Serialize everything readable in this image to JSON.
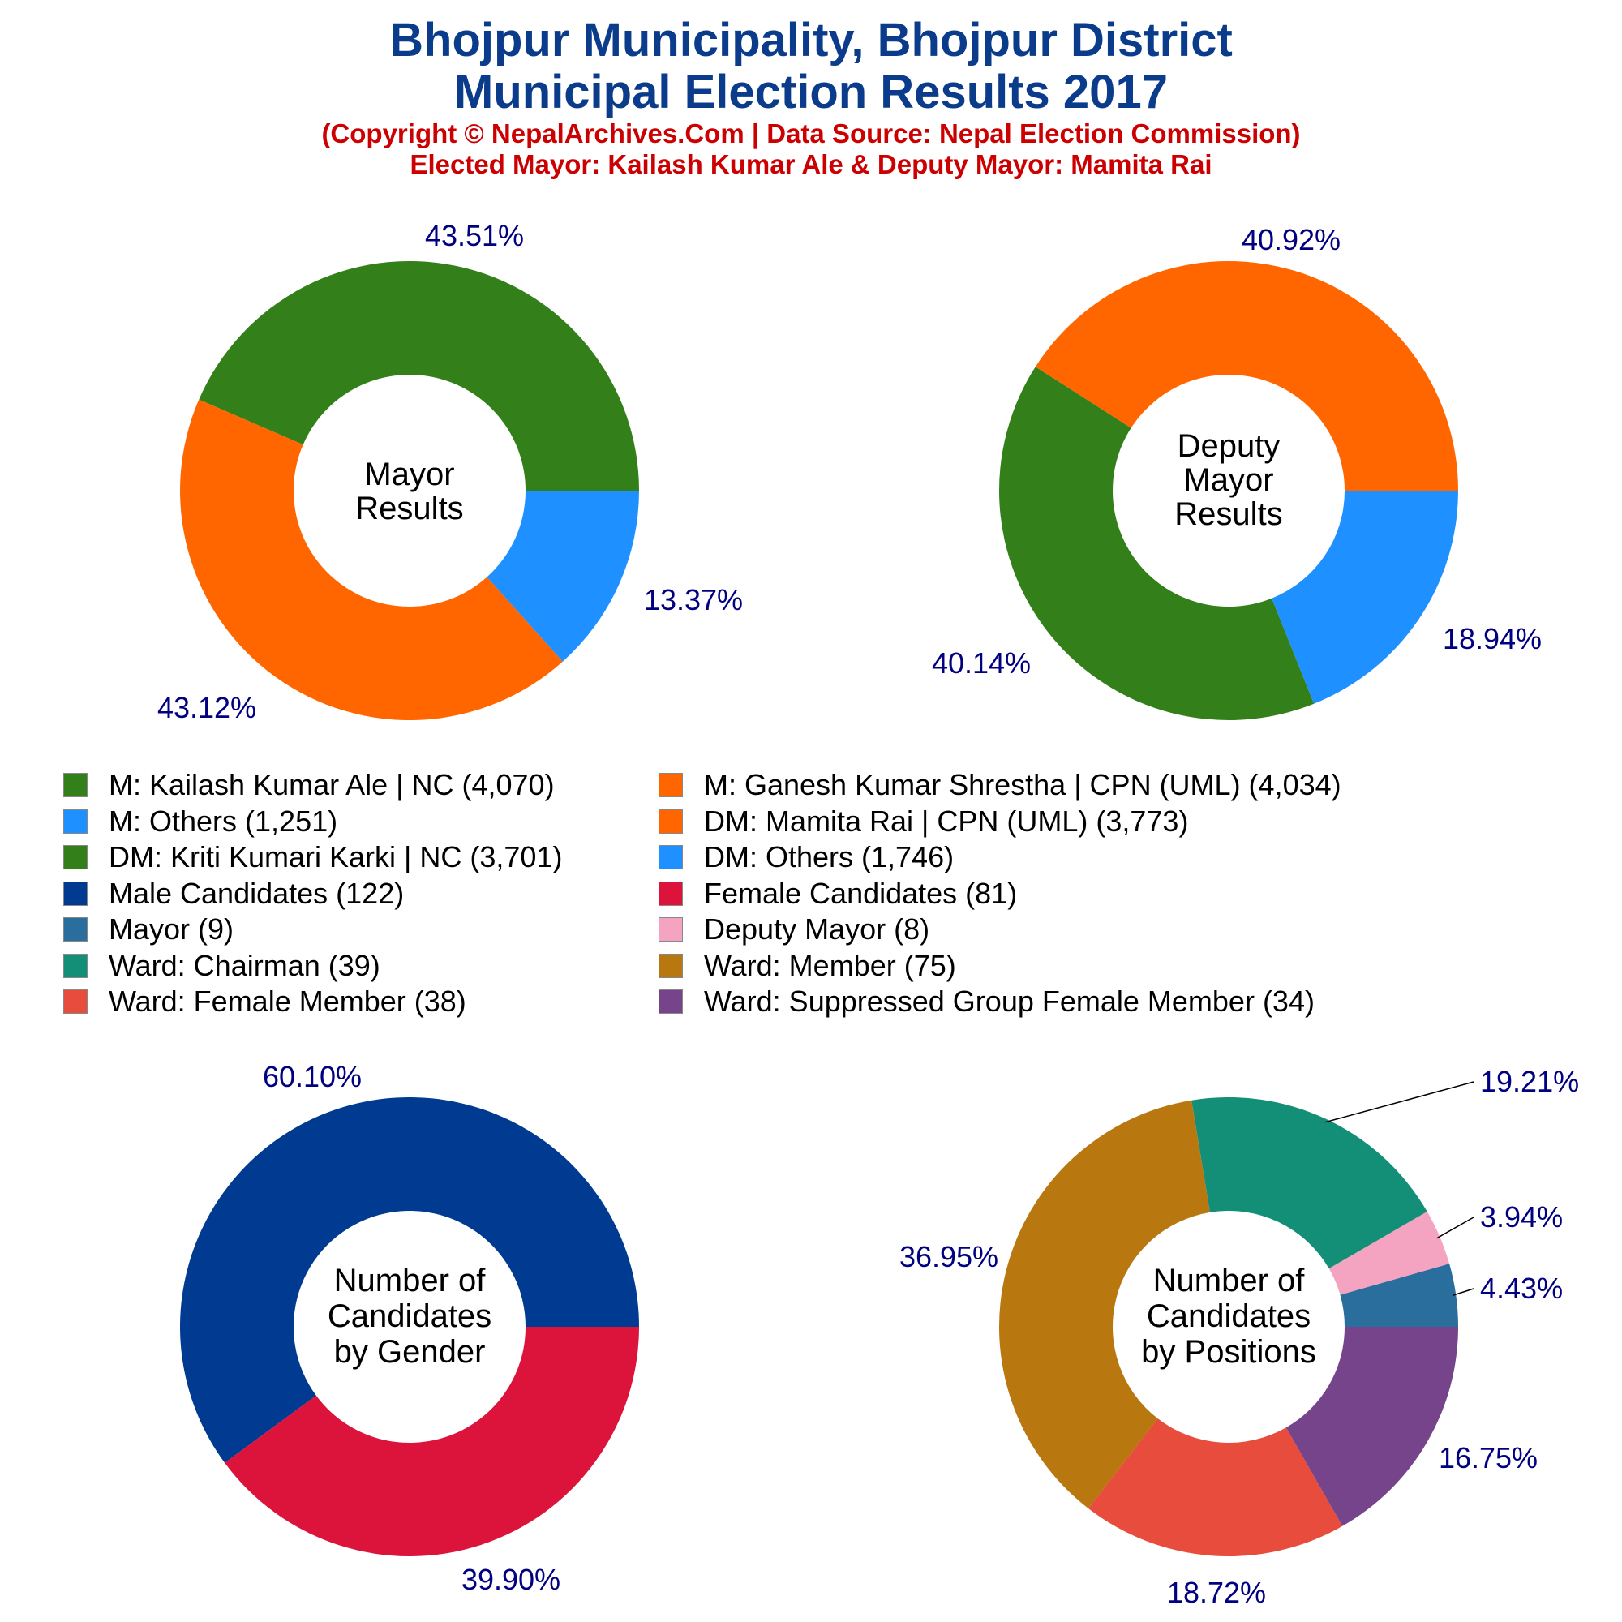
{
  "header": {
    "title_line1": "Bhojpur Municipality, Bhojpur District",
    "title_line2": "Municipal Election Results 2017",
    "subtitle_line1": "(Copyright © NepalArchives.Com | Data Source: Nepal Election Commission)",
    "subtitle_line2": "Elected Mayor: Kailash Kumar Ale & Deputy Mayor: Mamita Rai"
  },
  "chart_data": [
    {
      "type": "pie",
      "id": "mayor",
      "center_label": [
        "Mayor",
        "Results"
      ],
      "series": [
        {
          "name": "M: Kailash Kumar Ale | NC",
          "value": 4070,
          "percent_label": "43.51%",
          "color": "#33801a"
        },
        {
          "name": "M: Ganesh Kumar Shrestha | CPN (UML)",
          "value": 4034,
          "percent_label": "43.12%",
          "color": "#ff6600"
        },
        {
          "name": "M: Others",
          "value": 1251,
          "percent_label": "13.37%",
          "color": "#1e90ff"
        }
      ]
    },
    {
      "type": "pie",
      "id": "deputy",
      "center_label": [
        "Deputy",
        "Mayor",
        "Results"
      ],
      "series": [
        {
          "name": "DM: Mamita Rai | CPN (UML)",
          "value": 3773,
          "percent_label": "40.92%",
          "color": "#ff6600"
        },
        {
          "name": "DM: Kriti Kumari Karki | NC",
          "value": 3701,
          "percent_label": "40.14%",
          "color": "#33801a"
        },
        {
          "name": "DM: Others",
          "value": 1746,
          "percent_label": "18.94%",
          "color": "#1e90ff"
        }
      ]
    },
    {
      "type": "pie",
      "id": "gender",
      "center_label": [
        "Number of",
        "Candidates",
        "by Gender"
      ],
      "series": [
        {
          "name": "Male Candidates",
          "value": 122,
          "percent_label": "60.10%",
          "color": "#003a91"
        },
        {
          "name": "Female Candidates",
          "value": 81,
          "percent_label": "39.90%",
          "color": "#dc143c"
        }
      ]
    },
    {
      "type": "pie",
      "id": "positions",
      "center_label": [
        "Number of",
        "Candidates",
        "by Positions"
      ],
      "series": [
        {
          "name": "Mayor",
          "value": 9,
          "percent_label": "4.43%",
          "color": "#2a6e9e"
        },
        {
          "name": "Deputy Mayor",
          "value": 8,
          "percent_label": "3.94%",
          "color": "#f4a4c0"
        },
        {
          "name": "Ward: Chairman",
          "value": 39,
          "percent_label": "19.21%",
          "color": "#148f77"
        },
        {
          "name": "Ward: Member",
          "value": 75,
          "percent_label": "36.95%",
          "color": "#b8770f"
        },
        {
          "name": "Ward: Female Member",
          "value": 38,
          "percent_label": "18.72%",
          "color": "#e74c3c"
        },
        {
          "name": "Ward: Suppressed Group Female Member",
          "value": 34,
          "percent_label": "16.75%",
          "color": "#76448a"
        }
      ]
    }
  ],
  "legend": {
    "left": [
      {
        "label": "M: Kailash Kumar Ale | NC (4,070)",
        "color": "#33801a"
      },
      {
        "label": "M: Others (1,251)",
        "color": "#1e90ff"
      },
      {
        "label": "DM: Kriti Kumari Karki | NC (3,701)",
        "color": "#33801a"
      },
      {
        "label": "Male Candidates (122)",
        "color": "#003a91"
      },
      {
        "label": "Mayor (9)",
        "color": "#2a6e9e"
      },
      {
        "label": "Ward: Chairman (39)",
        "color": "#148f77"
      },
      {
        "label": "Ward: Female Member (38)",
        "color": "#e74c3c"
      }
    ],
    "right": [
      {
        "label": "M: Ganesh Kumar Shrestha | CPN (UML) (4,034)",
        "color": "#ff6600"
      },
      {
        "label": "DM: Mamita Rai | CPN (UML) (3,773)",
        "color": "#ff6600"
      },
      {
        "label": "DM: Others (1,746)",
        "color": "#1e90ff"
      },
      {
        "label": "Female Candidates (81)",
        "color": "#dc143c"
      },
      {
        "label": "Deputy Mayor (8)",
        "color": "#f4a4c0"
      },
      {
        "label": "Ward: Member (75)",
        "color": "#b8770f"
      },
      {
        "label": "Ward: Suppressed Group Female Member (34)",
        "color": "#76448a"
      }
    ]
  }
}
